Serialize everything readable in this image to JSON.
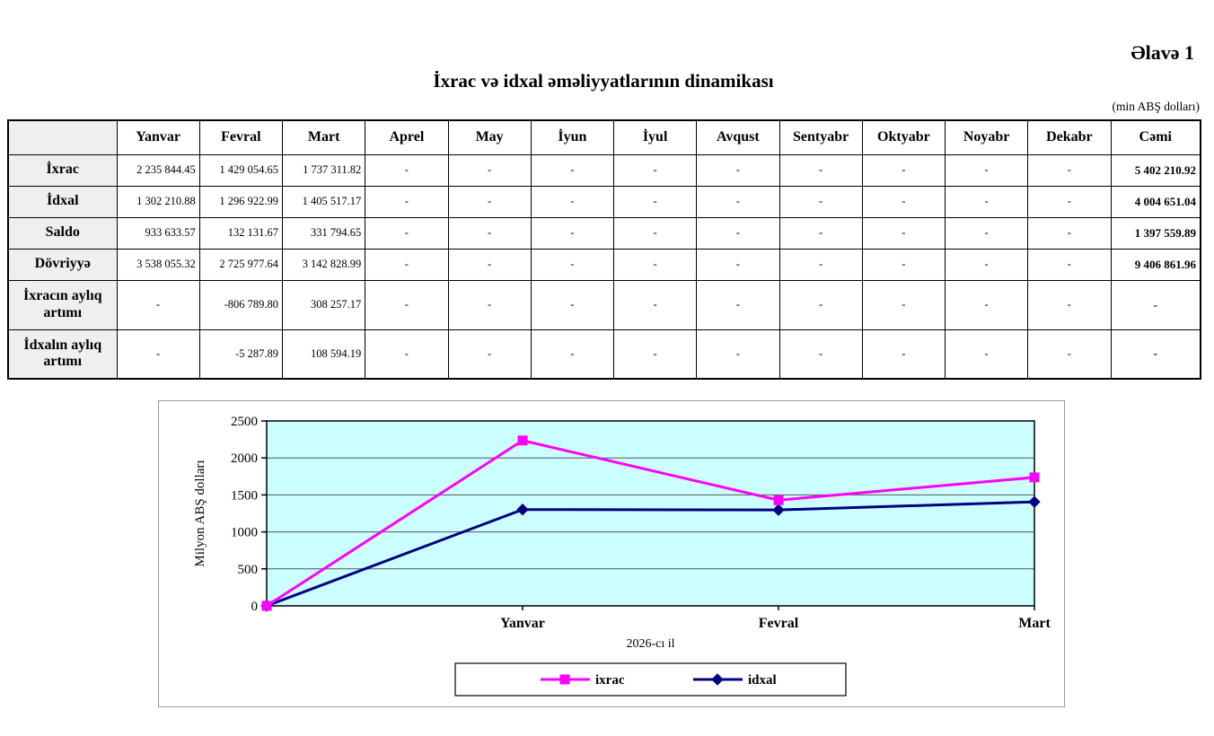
{
  "header": {
    "annex": "Əlavə 1",
    "title": "İxrac və idxal əməliyyatlarının dinamikası",
    "unit_note": "(min ABŞ dolları)"
  },
  "table": {
    "columns": [
      "",
      "Yanvar",
      "Fevral",
      "Mart",
      "Aprel",
      "May",
      "İyun",
      "İyul",
      "Avqust",
      "Sentyabr",
      "Oktyabr",
      "Noyabr",
      "Dekabr",
      "Cəmi"
    ],
    "rows": [
      {
        "label": "İxrac",
        "values": [
          "2 235 844.45",
          "1 429 054.65",
          "1 737 311.82",
          "-",
          "-",
          "-",
          "-",
          "-",
          "-",
          "-",
          "-",
          "-",
          "5 402 210.92"
        ]
      },
      {
        "label": "İdxal",
        "values": [
          "1 302 210.88",
          "1 296 922.99",
          "1 405 517.17",
          "-",
          "-",
          "-",
          "-",
          "-",
          "-",
          "-",
          "-",
          "-",
          "4 004 651.04"
        ]
      },
      {
        "label": "Saldo",
        "values": [
          "933 633.57",
          "132 131.67",
          "331 794.65",
          "-",
          "-",
          "-",
          "-",
          "-",
          "-",
          "-",
          "-",
          "-",
          "1 397 559.89"
        ]
      },
      {
        "label": "Dövriyyə",
        "values": [
          "3 538 055.32",
          "2 725 977.64",
          "3 142 828.99",
          "-",
          "-",
          "-",
          "-",
          "-",
          "-",
          "-",
          "-",
          "-",
          "9 406 861.96"
        ]
      },
      {
        "label": "İxracın aylıq artımı",
        "values": [
          "-",
          "-806 789.80",
          "308 257.17",
          "-",
          "-",
          "-",
          "-",
          "-",
          "-",
          "-",
          "-",
          "-",
          "-"
        ]
      },
      {
        "label": "İdxalın aylıq artımı",
        "values": [
          "-",
          "-5 287.89",
          "108 594.19",
          "-",
          "-",
          "-",
          "-",
          "-",
          "-",
          "-",
          "-",
          "-",
          "-"
        ]
      }
    ]
  },
  "chart_data": {
    "type": "line",
    "x": [
      "",
      "Yanvar",
      "Fevral",
      "Mart"
    ],
    "series": [
      {
        "name": "ixrac",
        "color": "#FF00FF",
        "marker": "square",
        "values": [
          0,
          2235.84,
          1429.05,
          1737.31
        ]
      },
      {
        "name": "idxal",
        "color": "#000080",
        "marker": "diamond",
        "values": [
          0,
          1302.21,
          1296.92,
          1405.52
        ]
      }
    ],
    "title": "",
    "xlabel": "2026-cı il",
    "ylabel": "Milyon ABŞ dolları",
    "ylim": [
      0,
      2500
    ],
    "yticks": [
      0,
      500,
      1000,
      1500,
      2000,
      2500
    ],
    "plot_bg": "#CCFFFF",
    "grid": "horizontal",
    "legend_position": "bottom"
  }
}
